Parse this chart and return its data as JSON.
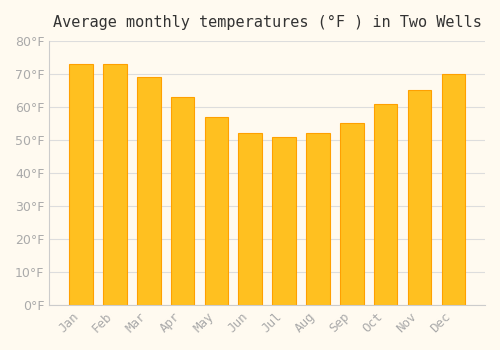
{
  "title": "Average monthly temperatures (°F ) in Two Wells",
  "months": [
    "Jan",
    "Feb",
    "Mar",
    "Apr",
    "May",
    "Jun",
    "Jul",
    "Aug",
    "Sep",
    "Oct",
    "Nov",
    "Dec"
  ],
  "values": [
    73,
    73,
    69,
    63,
    57,
    52,
    51,
    52,
    55,
    61,
    65,
    70
  ],
  "bar_color": "#FFC020",
  "bar_edge_color": "#FFA000",
  "background_color": "#FFFAF0",
  "grid_color": "#DDDDDD",
  "ylim": [
    0,
    80
  ],
  "yticks": [
    0,
    10,
    20,
    30,
    40,
    50,
    60,
    70,
    80
  ],
  "title_fontsize": 11,
  "tick_fontsize": 9,
  "tick_color": "#AAAAAA",
  "spine_color": "#CCCCCC"
}
